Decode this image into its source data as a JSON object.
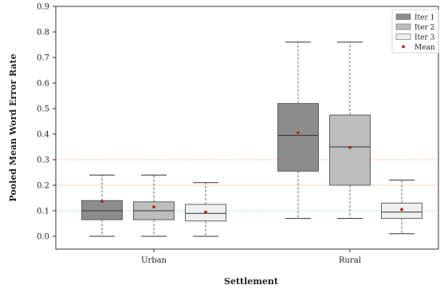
{
  "chart_data": {
    "type": "box",
    "xlabel": "Settlement",
    "ylabel": "Pooled Mean Word Error Rate",
    "ylim": [
      0,
      0.9
    ],
    "yticks": [
      "0.0",
      "0.1",
      "0.2",
      "0.3",
      "0.4",
      "0.5",
      "0.6",
      "0.7",
      "0.8",
      "0.9"
    ],
    "categories": [
      "Urban",
      "Rural"
    ],
    "reference_lines": [
      {
        "y": 0.3,
        "color": "#f4a582",
        "style": "dotted"
      },
      {
        "y": 0.2,
        "color": "#fdd9a8",
        "style": "solid"
      },
      {
        "y": 0.1,
        "color": "#8fcfb2",
        "style": "dotted"
      }
    ],
    "series": [
      {
        "name": "Iter 1",
        "color": "#8c8c8c",
        "boxes": [
          {
            "category": "Urban",
            "whisker_low": 0.0,
            "q1": 0.065,
            "median": 0.1,
            "q3": 0.14,
            "whisker_high": 0.24,
            "mean": 0.137
          },
          {
            "category": "Rural",
            "whisker_low": 0.07,
            "q1": 0.255,
            "median": 0.395,
            "q3": 0.52,
            "whisker_high": 0.76,
            "mean": 0.405
          }
        ]
      },
      {
        "name": "Iter 2",
        "color": "#bdbdbd",
        "boxes": [
          {
            "category": "Urban",
            "whisker_low": 0.0,
            "q1": 0.065,
            "median": 0.1,
            "q3": 0.135,
            "whisker_high": 0.24,
            "mean": 0.115
          },
          {
            "category": "Rural",
            "whisker_low": 0.07,
            "q1": 0.2,
            "median": 0.35,
            "q3": 0.475,
            "whisker_high": 0.76,
            "mean": 0.348
          }
        ]
      },
      {
        "name": "Iter 3",
        "color": "#efefef",
        "boxes": [
          {
            "category": "Urban",
            "whisker_low": 0.0,
            "q1": 0.06,
            "median": 0.09,
            "q3": 0.125,
            "whisker_high": 0.21,
            "mean": 0.095
          },
          {
            "category": "Rural",
            "whisker_low": 0.01,
            "q1": 0.07,
            "median": 0.095,
            "q3": 0.13,
            "whisker_high": 0.22,
            "mean": 0.105
          }
        ]
      }
    ],
    "legend": {
      "position": "top-right",
      "entries": [
        "Iter 1",
        "Iter 2",
        "Iter 3"
      ],
      "mean_label": "Mean",
      "mean_color": "#b22222"
    },
    "grid": false
  }
}
